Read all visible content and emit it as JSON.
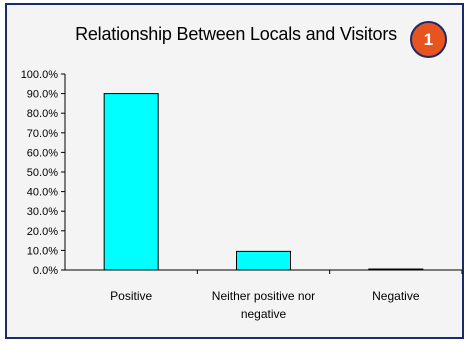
{
  "colors": {
    "frame_border": "#1a2a6c",
    "bar_fill": "#00ffff",
    "badge_fill": "#e8541f"
  },
  "badge": {
    "text": "1"
  },
  "chart_data": {
    "type": "bar",
    "title": "Relationship Between Locals and Visitors",
    "categories": [
      [
        "Positive"
      ],
      [
        "Neither positive nor",
        "negative"
      ],
      [
        "Negative"
      ]
    ],
    "values": [
      90.0,
      9.5,
      0.5
    ],
    "ylim": [
      0,
      100
    ],
    "yticks": [
      "0.0%",
      "10.0%",
      "20.0%",
      "30.0%",
      "40.0%",
      "50.0%",
      "60.0%",
      "70.0%",
      "80.0%",
      "90.0%",
      "100.0%"
    ],
    "grid": false,
    "legend": "none"
  }
}
